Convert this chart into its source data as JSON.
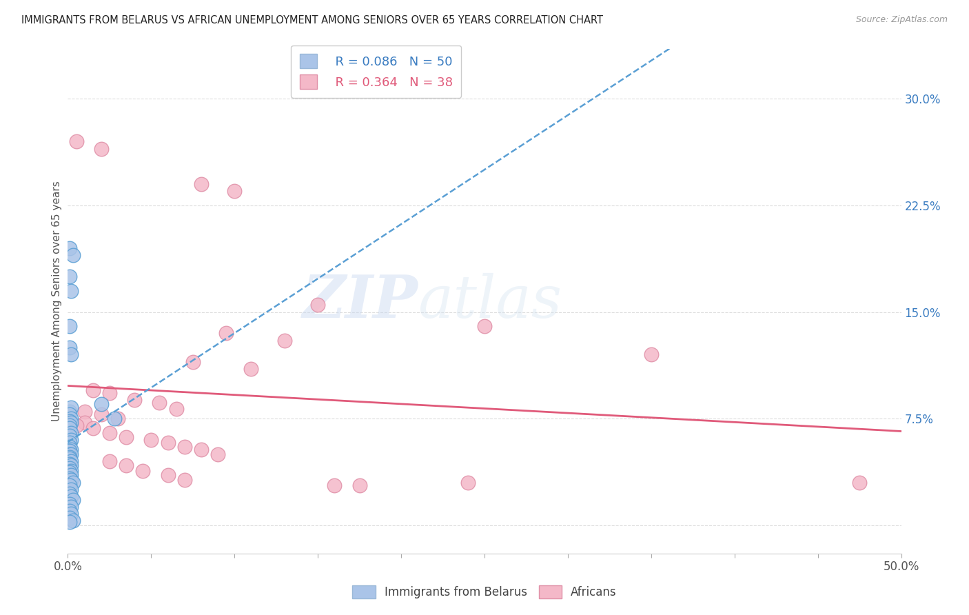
{
  "title": "IMMIGRANTS FROM BELARUS VS AFRICAN UNEMPLOYMENT AMONG SENIORS OVER 65 YEARS CORRELATION CHART",
  "source": "Source: ZipAtlas.com",
  "ylabel": "Unemployment Among Seniors over 65 years",
  "yticks": [
    0.0,
    0.075,
    0.15,
    0.225,
    0.3
  ],
  "ytick_labels": [
    "",
    "7.5%",
    "15.0%",
    "22.5%",
    "30.0%"
  ],
  "xlim": [
    0.0,
    0.5
  ],
  "ylim": [
    -0.02,
    0.335
  ],
  "xtick_positions": [
    0.0,
    0.05,
    0.1,
    0.15,
    0.2,
    0.25,
    0.3,
    0.35,
    0.4,
    0.45,
    0.5
  ],
  "legend_blue_r": "R = 0.086",
  "legend_blue_n": "N = 50",
  "legend_pink_r": "R = 0.364",
  "legend_pink_n": "N = 38",
  "legend_label_blue": "Immigrants from Belarus",
  "legend_label_pink": "Africans",
  "blue_scatter": [
    [
      0.001,
      0.195
    ],
    [
      0.003,
      0.19
    ],
    [
      0.001,
      0.175
    ],
    [
      0.002,
      0.165
    ],
    [
      0.001,
      0.14
    ],
    [
      0.001,
      0.125
    ],
    [
      0.002,
      0.12
    ],
    [
      0.001,
      0.08
    ],
    [
      0.002,
      0.083
    ],
    [
      0.001,
      0.078
    ],
    [
      0.002,
      0.075
    ],
    [
      0.001,
      0.073
    ],
    [
      0.002,
      0.072
    ],
    [
      0.001,
      0.07
    ],
    [
      0.001,
      0.068
    ],
    [
      0.002,
      0.065
    ],
    [
      0.001,
      0.063
    ],
    [
      0.002,
      0.06
    ],
    [
      0.001,
      0.058
    ],
    [
      0.001,
      0.055
    ],
    [
      0.002,
      0.053
    ],
    [
      0.001,
      0.052
    ],
    [
      0.001,
      0.05
    ],
    [
      0.002,
      0.05
    ],
    [
      0.001,
      0.048
    ],
    [
      0.001,
      0.047
    ],
    [
      0.002,
      0.045
    ],
    [
      0.001,
      0.043
    ],
    [
      0.002,
      0.042
    ],
    [
      0.001,
      0.04
    ],
    [
      0.002,
      0.038
    ],
    [
      0.001,
      0.037
    ],
    [
      0.002,
      0.035
    ],
    [
      0.001,
      0.033
    ],
    [
      0.002,
      0.032
    ],
    [
      0.003,
      0.03
    ],
    [
      0.001,
      0.028
    ],
    [
      0.002,
      0.025
    ],
    [
      0.001,
      0.022
    ],
    [
      0.002,
      0.02
    ],
    [
      0.003,
      0.018
    ],
    [
      0.001,
      0.015
    ],
    [
      0.002,
      0.013
    ],
    [
      0.001,
      0.01
    ],
    [
      0.002,
      0.008
    ],
    [
      0.001,
      0.005
    ],
    [
      0.003,
      0.003
    ],
    [
      0.001,
      0.002
    ],
    [
      0.028,
      0.075
    ],
    [
      0.02,
      0.085
    ]
  ],
  "pink_scatter": [
    [
      0.005,
      0.27
    ],
    [
      0.02,
      0.265
    ],
    [
      0.08,
      0.24
    ],
    [
      0.1,
      0.235
    ],
    [
      0.15,
      0.155
    ],
    [
      0.25,
      0.14
    ],
    [
      0.095,
      0.135
    ],
    [
      0.13,
      0.13
    ],
    [
      0.075,
      0.115
    ],
    [
      0.11,
      0.11
    ],
    [
      0.015,
      0.095
    ],
    [
      0.025,
      0.093
    ],
    [
      0.04,
      0.088
    ],
    [
      0.055,
      0.086
    ],
    [
      0.065,
      0.082
    ],
    [
      0.01,
      0.08
    ],
    [
      0.02,
      0.078
    ],
    [
      0.03,
      0.075
    ],
    [
      0.01,
      0.072
    ],
    [
      0.005,
      0.07
    ],
    [
      0.015,
      0.068
    ],
    [
      0.025,
      0.065
    ],
    [
      0.035,
      0.062
    ],
    [
      0.05,
      0.06
    ],
    [
      0.06,
      0.058
    ],
    [
      0.07,
      0.055
    ],
    [
      0.08,
      0.053
    ],
    [
      0.09,
      0.05
    ],
    [
      0.025,
      0.045
    ],
    [
      0.035,
      0.042
    ],
    [
      0.045,
      0.038
    ],
    [
      0.06,
      0.035
    ],
    [
      0.07,
      0.032
    ],
    [
      0.16,
      0.028
    ],
    [
      0.175,
      0.028
    ],
    [
      0.24,
      0.03
    ],
    [
      0.35,
      0.12
    ],
    [
      0.475,
      0.03
    ]
  ],
  "blue_color": "#aac4e8",
  "pink_color": "#f4b8c8",
  "blue_line_color": "#5a9fd4",
  "pink_line_color": "#e05a7a",
  "blue_dot_edge": "#5a9fd4",
  "pink_dot_edge": "#e090a8",
  "watermark_text": "ZIP",
  "watermark_text2": "atlas",
  "background_color": "#ffffff",
  "grid_color": "#dddddd"
}
